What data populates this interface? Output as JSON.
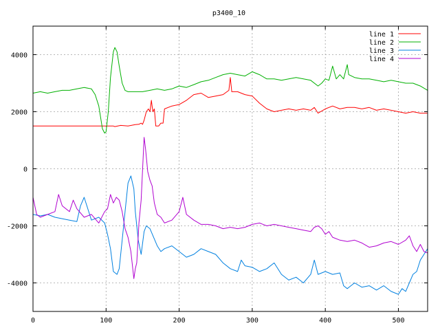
{
  "chart_data": {
    "type": "line",
    "title": "p3400_10",
    "xlabel": "",
    "ylabel": "",
    "xlim": [
      0,
      540
    ],
    "ylim": [
      -5000,
      5000
    ],
    "xticks": [
      0,
      100,
      200,
      300,
      400,
      500
    ],
    "yticks": [
      -4000,
      -2000,
      0,
      2000,
      4000
    ],
    "grid": true,
    "legend_position": "top-right",
    "series": [
      {
        "name": "line 1",
        "color": "#ff0000",
        "points": [
          [
            0,
            1500
          ],
          [
            50,
            1500
          ],
          [
            110,
            1500
          ],
          [
            112,
            1480
          ],
          [
            120,
            1520
          ],
          [
            130,
            1500
          ],
          [
            140,
            1550
          ],
          [
            145,
            1560
          ],
          [
            148,
            1600
          ],
          [
            150,
            1560
          ],
          [
            152,
            1700
          ],
          [
            155,
            2000
          ],
          [
            158,
            2100
          ],
          [
            160,
            2000
          ],
          [
            162,
            2400
          ],
          [
            164,
            2000
          ],
          [
            166,
            2100
          ],
          [
            168,
            1500
          ],
          [
            172,
            1500
          ],
          [
            175,
            1600
          ],
          [
            178,
            1600
          ],
          [
            180,
            2100
          ],
          [
            190,
            2200
          ],
          [
            200,
            2250
          ],
          [
            210,
            2400
          ],
          [
            220,
            2600
          ],
          [
            230,
            2650
          ],
          [
            240,
            2500
          ],
          [
            250,
            2550
          ],
          [
            260,
            2600
          ],
          [
            268,
            2750
          ],
          [
            270,
            3200
          ],
          [
            272,
            2700
          ],
          [
            280,
            2700
          ],
          [
            290,
            2600
          ],
          [
            300,
            2550
          ],
          [
            310,
            2300
          ],
          [
            320,
            2100
          ],
          [
            330,
            2000
          ],
          [
            340,
            2050
          ],
          [
            350,
            2100
          ],
          [
            360,
            2050
          ],
          [
            370,
            2100
          ],
          [
            380,
            2050
          ],
          [
            385,
            2150
          ],
          [
            390,
            1950
          ],
          [
            400,
            2100
          ],
          [
            410,
            2200
          ],
          [
            420,
            2100
          ],
          [
            430,
            2150
          ],
          [
            440,
            2150
          ],
          [
            450,
            2100
          ],
          [
            460,
            2150
          ],
          [
            470,
            2050
          ],
          [
            480,
            2100
          ],
          [
            490,
            2050
          ],
          [
            500,
            2000
          ],
          [
            510,
            1950
          ],
          [
            520,
            2000
          ],
          [
            530,
            1950
          ],
          [
            540,
            1950
          ]
        ]
      },
      {
        "name": "line 2",
        "color": "#00b000",
        "points": [
          [
            0,
            2650
          ],
          [
            10,
            2700
          ],
          [
            20,
            2650
          ],
          [
            30,
            2700
          ],
          [
            40,
            2750
          ],
          [
            50,
            2750
          ],
          [
            60,
            2800
          ],
          [
            70,
            2850
          ],
          [
            80,
            2800
          ],
          [
            85,
            2600
          ],
          [
            90,
            2200
          ],
          [
            95,
            1400
          ],
          [
            98,
            1250
          ],
          [
            100,
            1300
          ],
          [
            103,
            2000
          ],
          [
            106,
            3200
          ],
          [
            110,
            4100
          ],
          [
            112,
            4250
          ],
          [
            115,
            4100
          ],
          [
            118,
            3600
          ],
          [
            122,
            3000
          ],
          [
            126,
            2750
          ],
          [
            130,
            2700
          ],
          [
            140,
            2700
          ],
          [
            150,
            2700
          ],
          [
            160,
            2750
          ],
          [
            170,
            2800
          ],
          [
            180,
            2750
          ],
          [
            190,
            2800
          ],
          [
            200,
            2900
          ],
          [
            210,
            2850
          ],
          [
            220,
            2950
          ],
          [
            230,
            3050
          ],
          [
            240,
            3100
          ],
          [
            250,
            3200
          ],
          [
            260,
            3300
          ],
          [
            270,
            3350
          ],
          [
            280,
            3300
          ],
          [
            290,
            3250
          ],
          [
            300,
            3400
          ],
          [
            310,
            3300
          ],
          [
            320,
            3150
          ],
          [
            330,
            3150
          ],
          [
            340,
            3100
          ],
          [
            350,
            3150
          ],
          [
            360,
            3200
          ],
          [
            370,
            3150
          ],
          [
            380,
            3100
          ],
          [
            390,
            2900
          ],
          [
            395,
            3000
          ],
          [
            400,
            3150
          ],
          [
            405,
            3100
          ],
          [
            410,
            3600
          ],
          [
            415,
            3150
          ],
          [
            420,
            3300
          ],
          [
            425,
            3150
          ],
          [
            430,
            3650
          ],
          [
            432,
            3300
          ],
          [
            440,
            3200
          ],
          [
            450,
            3150
          ],
          [
            460,
            3150
          ],
          [
            470,
            3100
          ],
          [
            480,
            3050
          ],
          [
            490,
            3100
          ],
          [
            500,
            3050
          ],
          [
            510,
            3000
          ],
          [
            520,
            3000
          ],
          [
            530,
            2900
          ],
          [
            540,
            2750
          ]
        ]
      },
      {
        "name": "line 3",
        "color": "#0080e0",
        "points": [
          [
            0,
            -1600
          ],
          [
            10,
            -1650
          ],
          [
            20,
            -1600
          ],
          [
            30,
            -1700
          ],
          [
            40,
            -1750
          ],
          [
            50,
            -1800
          ],
          [
            60,
            -1850
          ],
          [
            65,
            -1300
          ],
          [
            70,
            -1000
          ],
          [
            75,
            -1400
          ],
          [
            80,
            -1800
          ],
          [
            90,
            -1700
          ],
          [
            98,
            -1900
          ],
          [
            102,
            -2300
          ],
          [
            106,
            -2800
          ],
          [
            110,
            -3600
          ],
          [
            115,
            -3700
          ],
          [
            118,
            -3500
          ],
          [
            122,
            -2500
          ],
          [
            126,
            -1500
          ],
          [
            130,
            -500
          ],
          [
            134,
            -250
          ],
          [
            138,
            -700
          ],
          [
            140,
            -1500
          ],
          [
            144,
            -2500
          ],
          [
            148,
            -3000
          ],
          [
            152,
            -2200
          ],
          [
            155,
            -2000
          ],
          [
            160,
            -2100
          ],
          [
            165,
            -2400
          ],
          [
            170,
            -2700
          ],
          [
            175,
            -2900
          ],
          [
            180,
            -2800
          ],
          [
            190,
            -2700
          ],
          [
            200,
            -2900
          ],
          [
            210,
            -3100
          ],
          [
            220,
            -3000
          ],
          [
            230,
            -2800
          ],
          [
            240,
            -2900
          ],
          [
            250,
            -3000
          ],
          [
            260,
            -3300
          ],
          [
            270,
            -3500
          ],
          [
            280,
            -3600
          ],
          [
            285,
            -3200
          ],
          [
            290,
            -3400
          ],
          [
            300,
            -3450
          ],
          [
            310,
            -3600
          ],
          [
            320,
            -3500
          ],
          [
            330,
            -3300
          ],
          [
            340,
            -3700
          ],
          [
            350,
            -3900
          ],
          [
            360,
            -3800
          ],
          [
            370,
            -4000
          ],
          [
            380,
            -3700
          ],
          [
            385,
            -3200
          ],
          [
            390,
            -3700
          ],
          [
            400,
            -3600
          ],
          [
            410,
            -3700
          ],
          [
            420,
            -3650
          ],
          [
            425,
            -4100
          ],
          [
            430,
            -4200
          ],
          [
            440,
            -4000
          ],
          [
            450,
            -4150
          ],
          [
            460,
            -4100
          ],
          [
            470,
            -4250
          ],
          [
            480,
            -4100
          ],
          [
            490,
            -4300
          ],
          [
            500,
            -4400
          ],
          [
            505,
            -4200
          ],
          [
            510,
            -4300
          ],
          [
            515,
            -4000
          ],
          [
            520,
            -3700
          ],
          [
            525,
            -3600
          ],
          [
            530,
            -3200
          ],
          [
            535,
            -3000
          ],
          [
            540,
            -2800
          ]
        ]
      },
      {
        "name": "line 4",
        "color": "#b000d0",
        "points": [
          [
            0,
            -1000
          ],
          [
            5,
            -1600
          ],
          [
            10,
            -1700
          ],
          [
            20,
            -1600
          ],
          [
            30,
            -1500
          ],
          [
            35,
            -900
          ],
          [
            40,
            -1300
          ],
          [
            50,
            -1500
          ],
          [
            55,
            -1100
          ],
          [
            60,
            -1400
          ],
          [
            70,
            -1700
          ],
          [
            80,
            -1600
          ],
          [
            90,
            -1900
          ],
          [
            98,
            -1500
          ],
          [
            102,
            -1400
          ],
          [
            106,
            -900
          ],
          [
            110,
            -1200
          ],
          [
            114,
            -1000
          ],
          [
            118,
            -1100
          ],
          [
            122,
            -1500
          ],
          [
            126,
            -2100
          ],
          [
            130,
            -2400
          ],
          [
            134,
            -2900
          ],
          [
            138,
            -3850
          ],
          [
            140,
            -3500
          ],
          [
            142,
            -3300
          ],
          [
            145,
            -1900
          ],
          [
            148,
            -1100
          ],
          [
            152,
            1100
          ],
          [
            154,
            700
          ],
          [
            157,
            -100
          ],
          [
            160,
            -400
          ],
          [
            163,
            -600
          ],
          [
            166,
            -1200
          ],
          [
            170,
            -1600
          ],
          [
            175,
            -1700
          ],
          [
            180,
            -1900
          ],
          [
            190,
            -1800
          ],
          [
            200,
            -1500
          ],
          [
            205,
            -1000
          ],
          [
            210,
            -1600
          ],
          [
            220,
            -1800
          ],
          [
            230,
            -1950
          ],
          [
            240,
            -1950
          ],
          [
            250,
            -2000
          ],
          [
            260,
            -2100
          ],
          [
            270,
            -2050
          ],
          [
            280,
            -2100
          ],
          [
            290,
            -2050
          ],
          [
            300,
            -1950
          ],
          [
            310,
            -1900
          ],
          [
            320,
            -2000
          ],
          [
            330,
            -1950
          ],
          [
            340,
            -2000
          ],
          [
            350,
            -2050
          ],
          [
            360,
            -2100
          ],
          [
            370,
            -2150
          ],
          [
            380,
            -2200
          ],
          [
            385,
            -2050
          ],
          [
            390,
            -2000
          ],
          [
            395,
            -2100
          ],
          [
            400,
            -2300
          ],
          [
            405,
            -2200
          ],
          [
            410,
            -2400
          ],
          [
            420,
            -2500
          ],
          [
            430,
            -2550
          ],
          [
            440,
            -2500
          ],
          [
            450,
            -2600
          ],
          [
            460,
            -2750
          ],
          [
            470,
            -2700
          ],
          [
            480,
            -2600
          ],
          [
            490,
            -2550
          ],
          [
            500,
            -2650
          ],
          [
            510,
            -2500
          ],
          [
            515,
            -2350
          ],
          [
            520,
            -2700
          ],
          [
            525,
            -2900
          ],
          [
            530,
            -2650
          ],
          [
            535,
            -2900
          ],
          [
            540,
            -2950
          ]
        ]
      }
    ]
  }
}
